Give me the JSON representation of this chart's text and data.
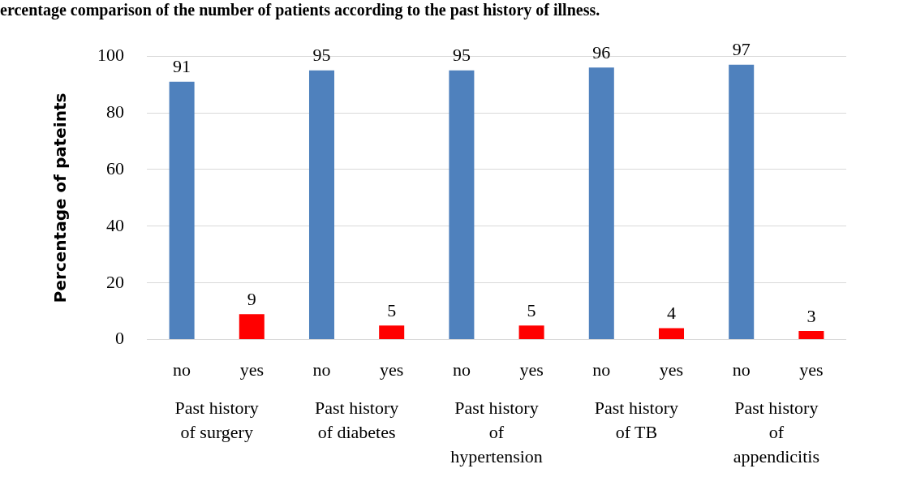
{
  "chart_data": {
    "type": "bar",
    "title": "ercentage comparison of the number of patients according to the past history of illness.",
    "ylabel": "Percentage of pateints",
    "categories": [
      "no",
      "yes",
      "no",
      "yes",
      "no",
      "yes",
      "no",
      "yes",
      "no",
      "yes"
    ],
    "values": [
      91,
      9,
      95,
      5,
      95,
      5,
      96,
      4,
      97,
      3
    ],
    "colors": [
      "#4f81bd",
      "#ff0000",
      "#4f81bd",
      "#ff0000",
      "#4f81bd",
      "#ff0000",
      "#4f81bd",
      "#ff0000",
      "#4f81bd",
      "#ff0000"
    ],
    "ylim": [
      0,
      100
    ],
    "yticks": [
      0,
      20,
      40,
      60,
      80,
      100
    ],
    "grid": "y",
    "data_labels": true,
    "legend": false,
    "annotations": [
      "Past history of surgery",
      "Past history of diabetes",
      "Past history of hypertension",
      "Past history of TB",
      "Past history of appendicitis"
    ]
  }
}
